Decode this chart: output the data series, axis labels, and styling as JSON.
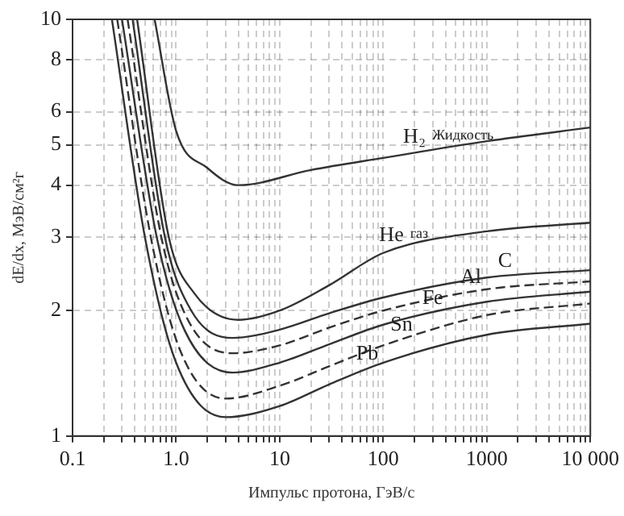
{
  "chart_data": {
    "type": "line",
    "xlabel": "Импульс протона, ГэВ/с",
    "ylabel": "dE/dx, МэВ/см²г",
    "log": "xy",
    "grid": true,
    "legend": false,
    "marker": "none",
    "xlim": [
      0.1,
      10000
    ],
    "ylim": [
      1,
      10
    ],
    "xticks": [
      0.1,
      {
        "value": 0.2,
        "label": null
      },
      {
        "value": 0.3,
        "label": null
      },
      {
        "value": 0.4,
        "label": null
      },
      {
        "value": 0.5,
        "label": null
      },
      {
        "value": 0.6,
        "label": null
      },
      {
        "value": 0.7,
        "label": null
      },
      {
        "value": 0.8,
        "label": null
      },
      {
        "value": 0.9,
        "label": null
      },
      {
        "value": 1,
        "label": "1.0"
      },
      {
        "value": 2,
        "label": null
      },
      {
        "value": 3,
        "label": null
      },
      {
        "value": 4,
        "label": null
      },
      {
        "value": 5,
        "label": null
      },
      {
        "value": 6,
        "label": null
      },
      {
        "value": 7,
        "label": null
      },
      {
        "value": 8,
        "label": null
      },
      {
        "value": 9,
        "label": null
      },
      10,
      {
        "value": 20,
        "label": null
      },
      {
        "value": 30,
        "label": null
      },
      {
        "value": 40,
        "label": null
      },
      {
        "value": 50,
        "label": null
      },
      {
        "value": 60,
        "label": null
      },
      {
        "value": 70,
        "label": null
      },
      {
        "value": 80,
        "label": null
      },
      {
        "value": 90,
        "label": null
      },
      100,
      {
        "value": 200,
        "label": null
      },
      {
        "value": 300,
        "label": null
      },
      {
        "value": 400,
        "label": null
      },
      {
        "value": 500,
        "label": null
      },
      {
        "value": 600,
        "label": null
      },
      {
        "value": 700,
        "label": null
      },
      {
        "value": 800,
        "label": null
      },
      {
        "value": 900,
        "label": null
      },
      1000,
      {
        "value": 2000,
        "label": null
      },
      {
        "value": 3000,
        "label": null
      },
      {
        "value": 4000,
        "label": null
      },
      {
        "value": 5000,
        "label": null
      },
      {
        "value": 6000,
        "label": null
      },
      {
        "value": 7000,
        "label": null
      },
      {
        "value": 8000,
        "label": null
      },
      {
        "value": 9000,
        "label": null
      },
      {
        "value": 10000,
        "label": "10 000"
      }
    ],
    "yticks": [
      1,
      2,
      3,
      4,
      5,
      6,
      8,
      10
    ],
    "series": [
      {
        "name": "H₂",
        "color": "#333333",
        "line_style": "solid",
        "x": [
          0.62,
          1,
          2,
          4,
          20,
          100,
          1000,
          10000
        ],
        "values": [
          10,
          5.4,
          4.4,
          4.0,
          4.35,
          4.65,
          5.1,
          5.5
        ]
      },
      {
        "name": "He",
        "color": "#333333",
        "line_style": "solid",
        "x": [
          0.42,
          0.85,
          1.5,
          4,
          10,
          30,
          100,
          1000,
          10000
        ],
        "values": [
          10,
          3,
          2.2,
          1.9,
          2.0,
          2.3,
          2.75,
          3.1,
          3.25
        ]
      },
      {
        "name": "C",
        "color": "#333333",
        "line_style": "solid",
        "x": [
          0.38,
          0.78,
          1.4,
          3.5,
          10,
          30,
          100,
          1000,
          10000
        ],
        "values": [
          10,
          3,
          2.0,
          1.72,
          1.8,
          1.97,
          2.15,
          2.4,
          2.5
        ]
      },
      {
        "name": "Al",
        "color": "#333333",
        "line_style": "dashed",
        "x": [
          0.34,
          0.72,
          1.3,
          3.5,
          10,
          30,
          100,
          1000,
          10000
        ],
        "values": [
          10,
          3,
          1.9,
          1.58,
          1.65,
          1.82,
          2.0,
          2.25,
          2.35
        ]
      },
      {
        "name": "Fe",
        "color": "#333333",
        "line_style": "solid",
        "x": [
          0.3,
          0.65,
          1.2,
          3.5,
          10,
          30,
          100,
          1000,
          10000
        ],
        "values": [
          10,
          3,
          1.8,
          1.42,
          1.5,
          1.66,
          1.85,
          2.1,
          2.22
        ]
      },
      {
        "name": "Sn",
        "color": "#333333",
        "line_style": "dashed",
        "x": [
          0.27,
          0.57,
          1.1,
          3,
          10,
          30,
          100,
          1000,
          10000
        ],
        "values": [
          10,
          3,
          1.6,
          1.23,
          1.32,
          1.47,
          1.65,
          1.95,
          2.08
        ]
      },
      {
        "name": "Pb",
        "color": "#333333",
        "line_style": "solid",
        "x": [
          0.24,
          0.5,
          1.0,
          3,
          10,
          30,
          100,
          1000,
          10000
        ],
        "values": [
          10,
          3,
          1.5,
          1.11,
          1.18,
          1.33,
          1.5,
          1.75,
          1.86
        ]
      }
    ],
    "annotations": [
      "Жидкость",
      "газ"
    ]
  }
}
